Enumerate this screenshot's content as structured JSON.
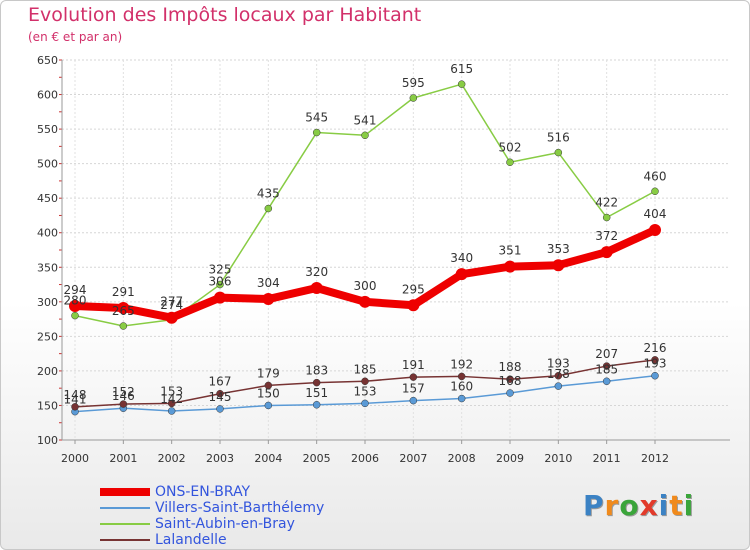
{
  "title": "Evolution des Impôts locaux par Habitant",
  "subtitle": "(en € et par an)",
  "logo": {
    "text": "Proxiti",
    "letters": [
      {
        "ch": "P",
        "color": "#3b82c4"
      },
      {
        "ch": "r",
        "color": "#f08a1c"
      },
      {
        "ch": "o",
        "color": "#3aa53a"
      },
      {
        "ch": "x",
        "color": "#e23a2a"
      },
      {
        "ch": "i",
        "color": "#3b82c4"
      },
      {
        "ch": "t",
        "color": "#f08a1c"
      },
      {
        "ch": "i",
        "color": "#3aa53a"
      }
    ]
  },
  "chart_data": {
    "type": "line",
    "title": "Evolution des Impôts locaux par Habitant",
    "subtitle": "(en € et par an)",
    "xlabel": "",
    "ylabel": "",
    "x": [
      "2000",
      "2001",
      "2002",
      "2003",
      "2004",
      "2005",
      "2006",
      "2007",
      "2008",
      "2009",
      "2010",
      "2011",
      "2012"
    ],
    "ylim": [
      100,
      650
    ],
    "yticks": [
      100,
      150,
      200,
      250,
      300,
      350,
      400,
      450,
      500,
      550,
      600,
      650
    ],
    "grid": true,
    "legend_position": "bottom-left",
    "series": [
      {
        "name": "ONS-EN-BRAY",
        "color": "#ee0000",
        "values": [
          294,
          291,
          277,
          306,
          304,
          320,
          300,
          295,
          340,
          351,
          353,
          372,
          404
        ]
      },
      {
        "name": "Villers-Saint-Barthélemy",
        "color": "#5a9ad6",
        "values": [
          141,
          146,
          142,
          145,
          150,
          151,
          153,
          157,
          160,
          168,
          178,
          185,
          193
        ]
      },
      {
        "name": "Saint-Aubin-en-Bray",
        "color": "#88cc44",
        "values": [
          280,
          265,
          274,
          325,
          435,
          545,
          541,
          595,
          615,
          502,
          516,
          422,
          460
        ]
      },
      {
        "name": "Lalandelle",
        "color": "#773333",
        "values": [
          148,
          152,
          153,
          167,
          179,
          183,
          185,
          191,
          192,
          188,
          193,
          207,
          216
        ]
      }
    ],
    "legend_label_colors": [
      "#3355dd",
      "#3355dd",
      "#3355dd",
      "#3355dd"
    ]
  }
}
